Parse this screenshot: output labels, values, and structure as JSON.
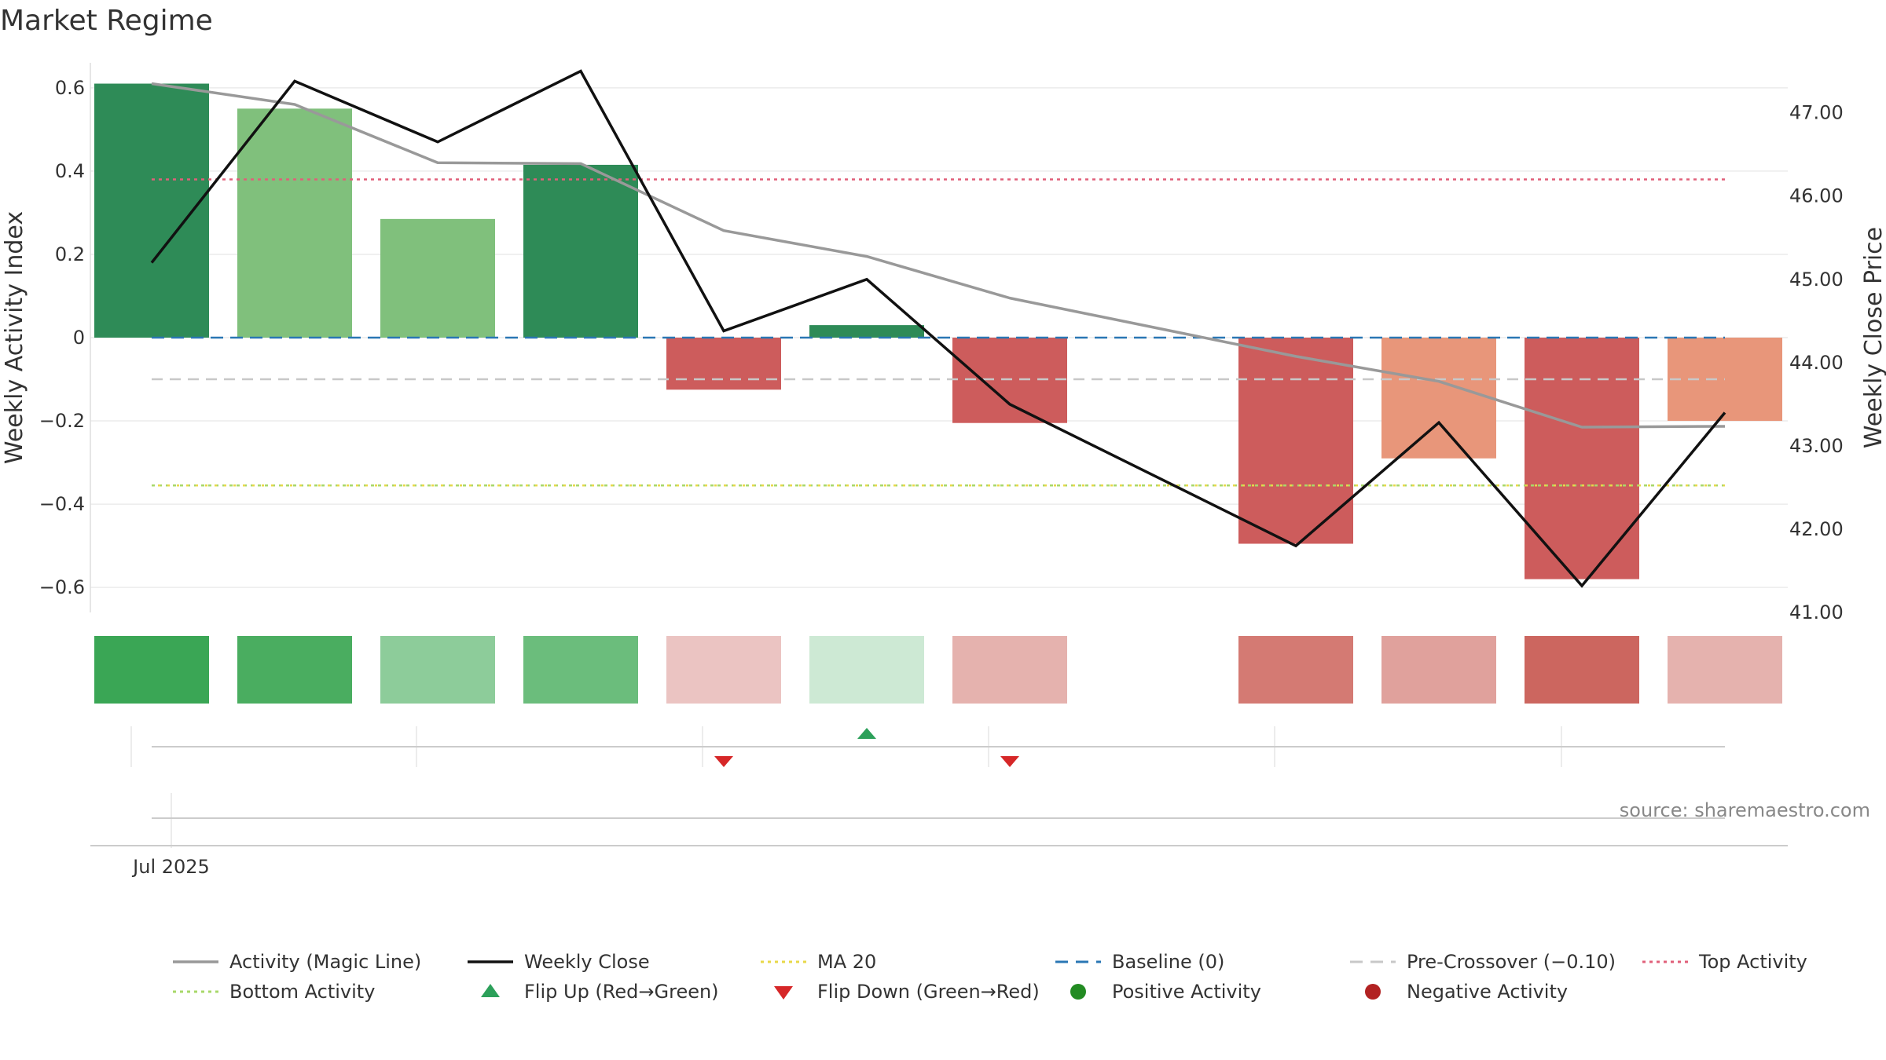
{
  "chart_data": {
    "type": "bar",
    "title": "Market Regime",
    "ylabel": "Weekly Activity Index",
    "y2label": "Weekly Close Price",
    "ylim": [
      -0.66,
      0.66
    ],
    "y2lim": [
      41.0,
      47.6
    ],
    "yticks": [
      -0.6,
      -0.4,
      -0.2,
      0,
      0.2,
      0.4,
      0.6
    ],
    "yticklabels": [
      "−0.6",
      "−0.4",
      "−0.2",
      "0",
      "0.2",
      "0.4",
      "0.6"
    ],
    "y2ticks": [
      41,
      42,
      43,
      44,
      45,
      46,
      47
    ],
    "y2ticklabels": [
      "41.00",
      "42.00",
      "43.00",
      "44.00",
      "45.00",
      "46.00",
      "47.00"
    ],
    "x_label_text": "Jul 2025",
    "weeks": [
      0,
      1,
      2,
      3,
      4,
      5,
      6,
      7,
      8,
      9,
      10,
      11
    ],
    "activity": [
      0.61,
      0.55,
      0.285,
      0.415,
      -0.125,
      0.03,
      -0.205,
      null,
      -0.495,
      -0.29,
      -0.58,
      -0.2
    ],
    "bar_colors": [
      "#2e8b57",
      "#80c07c",
      "#80c07c",
      "#2e8b57",
      "#cd5c5c",
      "#2e8b57",
      "#cd5c5c",
      null,
      "#cd5c5c",
      "#e8967a",
      "#cd5c5c",
      "#e8967a"
    ],
    "magic_line": [
      0.61,
      0.56,
      0.42,
      0.418,
      0.257,
      0.195,
      0.095,
      null,
      -0.045,
      -0.105,
      -0.215,
      -0.213
    ],
    "weekly_close": [
      45.2,
      47.38,
      46.65,
      47.5,
      44.38,
      45.0,
      43.5,
      null,
      41.8,
      43.28,
      41.32,
      43.4
    ],
    "ma20": -0.355,
    "baseline": 0,
    "pre_crossover": -0.1,
    "top_activity": 0.38,
    "bottom_activity": -0.355,
    "regime_strip_colors": [
      "#3aa655",
      "#4aad60",
      "#8dcc9a",
      "#6bbd7c",
      "#ebc4c2",
      "#cde9d4",
      "#e5b2ae",
      null,
      "#d47a73",
      "#e0a19c",
      "#cc665f",
      "#e5b2ae"
    ],
    "flips_up": [
      5
    ],
    "flips_down": [
      4,
      6
    ],
    "source": "source: sharemaestro.com",
    "legend": [
      {
        "label": "Activity (Magic Line)",
        "style": "line",
        "color": "#999999"
      },
      {
        "label": "Weekly Close",
        "style": "line",
        "color": "#111111"
      },
      {
        "label": "MA 20",
        "style": "dotted",
        "color": "#e8d84a"
      },
      {
        "label": "Baseline (0)",
        "style": "dashed",
        "color": "#2a77b4"
      },
      {
        "label": "Pre-Crossover (−0.10)",
        "style": "dashed",
        "color": "#c8c8c8"
      },
      {
        "label": "Top Activity",
        "style": "dotted",
        "color": "#e0607a"
      },
      {
        "label": "Bottom Activity",
        "style": "dotted",
        "color": "#a8d86a"
      },
      {
        "label": "Flip Up (Red→Green)",
        "style": "triangle-up",
        "color": "#2ca05a"
      },
      {
        "label": "Flip Down (Green→Red)",
        "style": "triangle-down",
        "color": "#d62728"
      },
      {
        "label": "Positive Activity",
        "style": "circle",
        "color": "#228b22"
      },
      {
        "label": "Negative Activity",
        "style": "circle",
        "color": "#b22222"
      }
    ]
  }
}
